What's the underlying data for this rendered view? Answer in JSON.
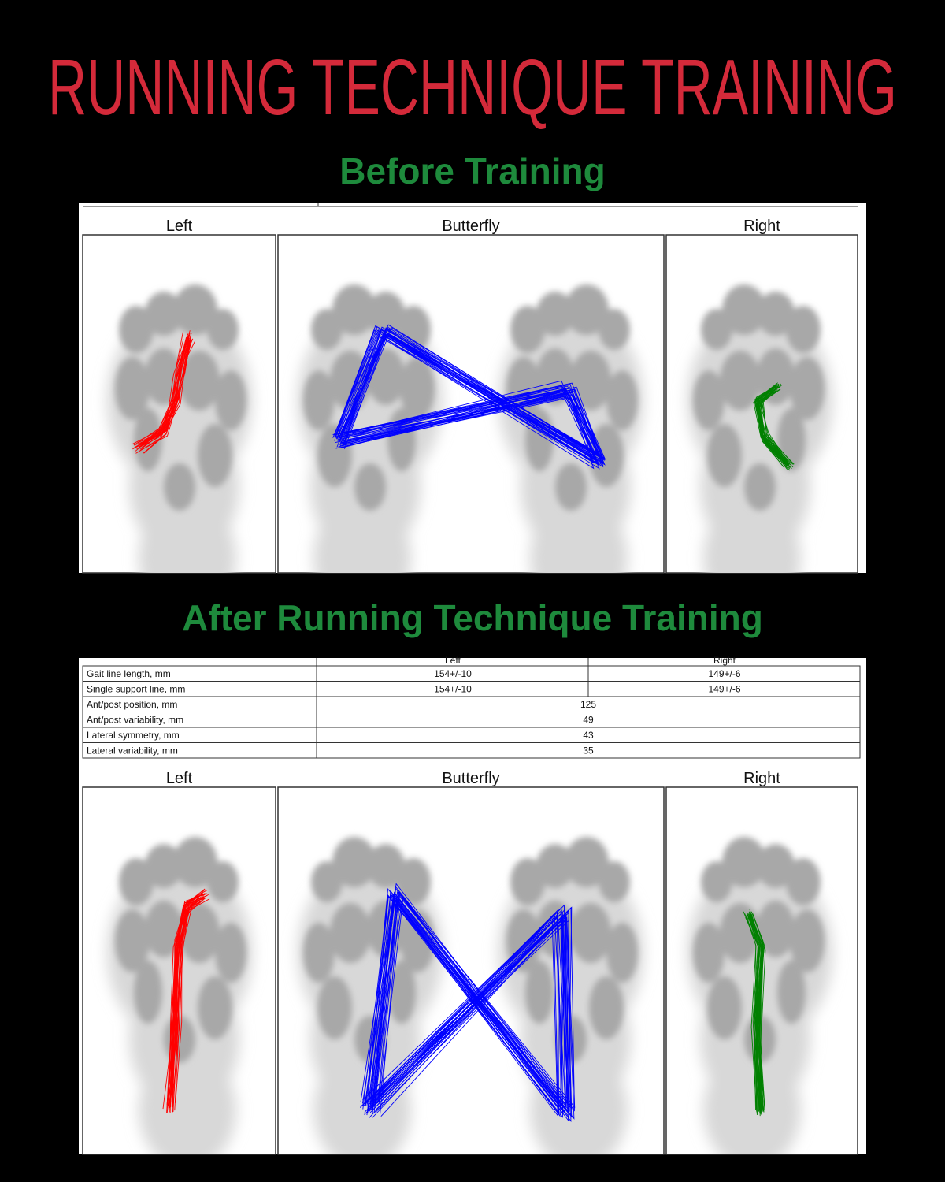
{
  "title": "RUNNING TECHNIQUE TRAINING",
  "before": {
    "heading": "Before Training",
    "panels": [
      "Left",
      "Butterfly",
      "Right"
    ]
  },
  "after": {
    "heading": "After Running Technique Training",
    "table": {
      "header": [
        "Left",
        "Right"
      ],
      "rows": [
        [
          "Gait line length, mm",
          "154+/-10",
          "149+/-6"
        ],
        [
          "Single support line, mm",
          "154+/-10",
          "149+/-6"
        ],
        [
          "Ant/post position, mm",
          "125"
        ],
        [
          "Ant/post variability, mm",
          "49"
        ],
        [
          "Lateral symmetry, mm",
          "43"
        ],
        [
          "Lateral variability, mm",
          "35"
        ]
      ]
    },
    "panels": [
      "Left",
      "Butterfly",
      "Right"
    ]
  }
}
